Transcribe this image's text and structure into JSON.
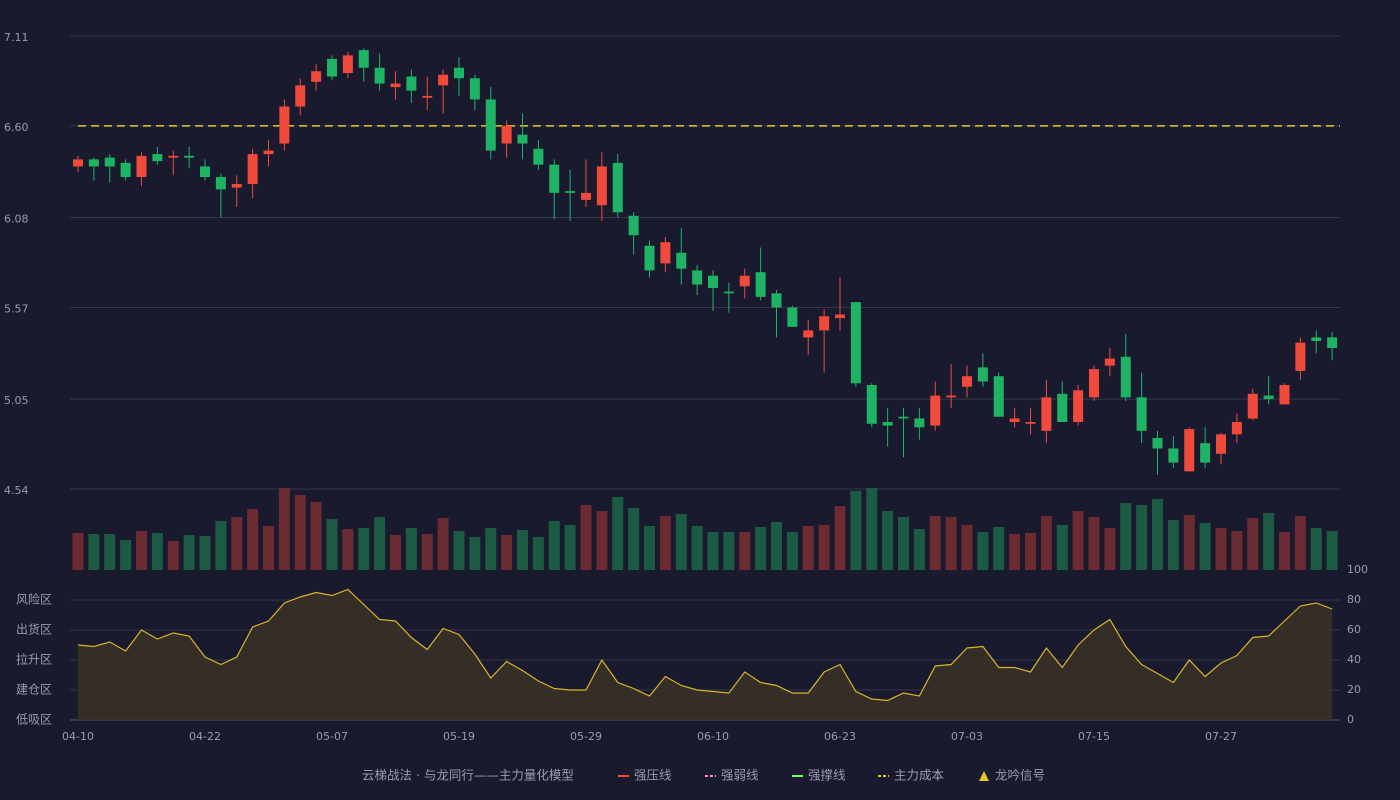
{
  "chart_data": [
    {
      "type": "candlestick",
      "ylim": [
        4.54,
        7.11
      ],
      "yticks": [
        4.54,
        5.05,
        5.57,
        6.08,
        {
          "value": 6.6,
          "label": "6.60"
        },
        7.11
      ],
      "grid": true,
      "up_color": "#ef4a3c",
      "down_color": "#1fb463",
      "volume_up_color": "#6b2b33",
      "volume_down_color": "#1d5a44",
      "cost_line": 6.6,
      "cost_color": "#e8c62a",
      "open": [
        6.37,
        6.41,
        6.42,
        6.39,
        6.31,
        6.44,
        6.42,
        6.43,
        6.37,
        6.31,
        6.25,
        6.27,
        6.44,
        6.5,
        6.71,
        6.85,
        6.98,
        6.9,
        7.03,
        6.93,
        6.82,
        6.88,
        6.76,
        6.83,
        6.93,
        6.87,
        6.75,
        6.5,
        6.55,
        6.47,
        6.38,
        6.23,
        6.18,
        6.15,
        6.39,
        6.09,
        5.92,
        5.82,
        5.88,
        5.78,
        5.75,
        5.66,
        5.69,
        5.77,
        5.65,
        5.57,
        5.4,
        5.44,
        5.51,
        5.6,
        5.13,
        4.92,
        4.95,
        4.94,
        4.9,
        5.06,
        5.12,
        5.23,
        5.18,
        4.92,
        4.91,
        4.87,
        5.08,
        4.92,
        5.06,
        5.24,
        5.29,
        5.06,
        4.83,
        4.77,
        4.64,
        4.8,
        4.74,
        4.85,
        4.94,
        5.07,
        5.02,
        5.21,
        5.4,
        5.4
      ],
      "high": [
        6.43,
        6.42,
        6.44,
        6.41,
        6.45,
        6.48,
        6.46,
        6.48,
        6.41,
        6.33,
        6.32,
        6.47,
        6.52,
        6.75,
        6.87,
        6.95,
        7.0,
        7.02,
        7.04,
        7.01,
        6.91,
        6.92,
        6.88,
        6.92,
        6.99,
        6.89,
        6.82,
        6.63,
        6.67,
        6.52,
        6.41,
        6.35,
        6.41,
        6.45,
        6.44,
        6.11,
        5.95,
        5.97,
        6.02,
        5.81,
        5.78,
        5.71,
        5.79,
        5.91,
        5.67,
        5.58,
        5.5,
        5.56,
        5.74,
        5.6,
        5.14,
        5.0,
        5.0,
        5.0,
        5.15,
        5.25,
        5.24,
        5.31,
        5.2,
        5.0,
        5.0,
        5.16,
        5.15,
        5.13,
        5.24,
        5.34,
        5.42,
        5.2,
        4.87,
        4.84,
        4.89,
        4.89,
        4.86,
        4.97,
        5.11,
        5.18,
        5.14,
        5.4,
        5.44,
        5.43
      ],
      "low": [
        6.34,
        6.29,
        6.28,
        6.29,
        6.26,
        6.38,
        6.32,
        6.36,
        6.29,
        6.08,
        6.14,
        6.19,
        6.37,
        6.46,
        6.66,
        6.8,
        6.86,
        6.87,
        6.85,
        6.8,
        6.75,
        6.73,
        6.69,
        6.67,
        6.77,
        6.69,
        6.41,
        6.42,
        6.41,
        6.35,
        6.07,
        6.06,
        6.14,
        6.06,
        6.08,
        5.87,
        5.74,
        5.77,
        5.7,
        5.64,
        5.55,
        5.54,
        5.62,
        5.61,
        5.4,
        5.46,
        5.3,
        5.2,
        5.44,
        5.12,
        4.89,
        4.78,
        4.72,
        4.82,
        4.87,
        5.0,
        5.06,
        5.12,
        4.95,
        4.89,
        4.85,
        4.8,
        4.92,
        4.9,
        5.04,
        5.18,
        5.04,
        4.8,
        4.62,
        4.66,
        4.64,
        4.66,
        4.68,
        4.8,
        4.93,
        5.02,
        5.02,
        5.16,
        5.31,
        5.27
      ],
      "close": [
        6.41,
        6.37,
        6.37,
        6.31,
        6.43,
        6.4,
        6.43,
        6.42,
        6.31,
        6.24,
        6.27,
        6.44,
        6.46,
        6.71,
        6.83,
        6.91,
        6.88,
        7.0,
        6.93,
        6.84,
        6.84,
        6.8,
        6.77,
        6.89,
        6.87,
        6.75,
        6.46,
        6.6,
        6.5,
        6.38,
        6.22,
        6.22,
        6.22,
        6.37,
        6.11,
        5.98,
        5.78,
        5.94,
        5.79,
        5.7,
        5.68,
        5.65,
        5.75,
        5.63,
        5.57,
        5.46,
        5.44,
        5.52,
        5.53,
        5.14,
        4.91,
        4.9,
        4.94,
        4.89,
        5.07,
        5.07,
        5.18,
        5.15,
        4.95,
        4.94,
        4.92,
        5.06,
        4.92,
        5.1,
        5.22,
        5.28,
        5.06,
        4.87,
        4.77,
        4.69,
        4.88,
        4.69,
        4.85,
        4.92,
        5.08,
        5.05,
        5.13,
        5.37,
        5.38,
        5.34
      ],
      "volume": [
        37,
        36,
        36,
        30,
        39,
        37,
        29,
        35,
        34,
        49,
        53,
        61,
        44,
        82,
        75,
        68,
        51,
        41,
        42,
        53,
        35,
        42,
        36,
        52,
        39,
        33,
        42,
        35,
        40,
        33,
        49,
        45,
        65,
        59,
        73,
        62,
        44,
        54,
        56,
        44,
        38,
        38,
        38,
        43,
        48,
        38,
        44,
        45,
        64,
        79,
        82,
        59,
        53,
        41,
        54,
        53,
        45,
        38,
        43,
        36,
        37,
        54,
        45,
        59,
        53,
        42,
        67,
        65,
        71,
        50,
        55,
        47,
        42,
        39,
        52,
        57,
        38,
        54,
        42,
        39
      ]
    },
    {
      "type": "line",
      "color": "#d9b42a",
      "ylim": [
        0,
        100
      ],
      "yticks": [
        0,
        20,
        40,
        60,
        80,
        100
      ],
      "ytick_colors": [
        "#ef4a3c",
        "#ef4a3c",
        "#3f8ef0",
        "#e040e0",
        "#f0a030",
        "#33dd44"
      ],
      "zones": [
        {
          "value": 0,
          "label": "低吸区"
        },
        {
          "value": 20,
          "label": "建仓区"
        },
        {
          "value": 40,
          "label": "拉升区"
        },
        {
          "value": 60,
          "label": "出货区"
        },
        {
          "value": 80,
          "label": "风险区"
        }
      ],
      "zone_colors": [
        "#ef4a3c",
        "#ef4a3c",
        "#3f8ef0",
        "#e040e0",
        "#f0a030"
      ],
      "categories": [
        "04-10",
        null,
        null,
        null,
        null,
        null,
        null,
        null,
        "04-22",
        null,
        null,
        null,
        null,
        null,
        null,
        null,
        "05-07",
        null,
        null,
        null,
        null,
        null,
        null,
        null,
        "05-19",
        null,
        null,
        null,
        null,
        null,
        null,
        null,
        "05-29",
        null,
        null,
        null,
        null,
        null,
        null,
        null,
        "06-10",
        null,
        null,
        null,
        null,
        null,
        null,
        null,
        "06-23",
        null,
        null,
        null,
        null,
        null,
        null,
        null,
        "07-03",
        null,
        null,
        null,
        null,
        null,
        null,
        null,
        "07-15",
        null,
        null,
        null,
        null,
        null,
        null,
        null,
        "07-27",
        null,
        null,
        null,
        null,
        null,
        null,
        null
      ],
      "values": [
        50,
        49,
        52,
        46,
        60,
        54,
        58,
        56,
        42,
        37,
        42,
        62,
        66,
        78,
        82,
        85,
        83,
        87,
        77,
        67,
        66,
        55,
        47,
        61,
        57,
        44,
        28,
        39,
        33,
        26,
        21,
        20,
        20,
        40,
        25,
        21,
        16,
        29,
        23,
        20,
        19,
        18,
        32,
        25,
        23,
        18,
        18,
        32,
        37,
        19,
        14,
        13,
        18,
        16,
        36,
        37,
        48,
        49,
        35,
        35,
        32,
        48,
        35,
        50,
        60,
        67,
        49,
        37,
        31,
        25,
        40,
        29,
        38,
        43,
        55,
        56,
        66,
        76,
        78,
        74
      ]
    }
  ],
  "legend": {
    "title": "云梯战法 · 与龙同行——主力量化模型",
    "title_color": "#e8c070",
    "items": [
      {
        "name": "强压线",
        "color": "#ef4a3c",
        "style": "solid"
      },
      {
        "name": "强弱线",
        "color": "#ff8fb0",
        "style": "dashed"
      },
      {
        "name": "强撑线",
        "color": "#66ff66",
        "style": "solid"
      },
      {
        "name": "主力成本",
        "color": "#e8c62a",
        "style": "dashed"
      },
      {
        "name": "龙吟信号",
        "color": "#e8c62a",
        "style": "triangle"
      }
    ]
  }
}
